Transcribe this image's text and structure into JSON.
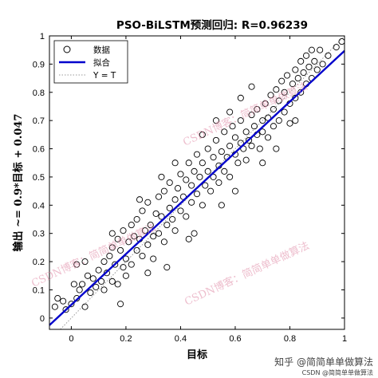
{
  "chart_data": {
    "type": "scatter",
    "title": "PSO-BiLSTM预测回归: R=0.96239",
    "xlabel": "目标",
    "ylabel": "输出 ~= 0.9*目标 + 0.047",
    "xlim": [
      -0.08,
      1.0
    ],
    "ylim": [
      -0.04,
      1.0
    ],
    "xticks": [
      "0",
      "0.2",
      "0.4",
      "0.6",
      "0.8",
      "1"
    ],
    "yticks": [
      "0",
      "0.1",
      "0.2",
      "0.3",
      "0.4",
      "0.5",
      "0.6",
      "0.7",
      "0.8",
      "0.9",
      "1"
    ],
    "grid": false,
    "legend": {
      "position": "top-left",
      "entries": [
        "数据",
        "拟合",
        "Y = T"
      ]
    },
    "fit": {
      "slope": 0.9,
      "intercept": 0.047,
      "color": "#0000cc"
    },
    "identity_color": "#999999",
    "marker_color": "#000000",
    "points": [
      [
        -0.06,
        0.04
      ],
      [
        -0.05,
        0.07
      ],
      [
        -0.03,
        0.06
      ],
      [
        -0.02,
        0.03
      ],
      [
        0.0,
        0.05
      ],
      [
        0.01,
        0.12
      ],
      [
        0.02,
        0.07
      ],
      [
        0.03,
        0.1
      ],
      [
        0.04,
        0.12
      ],
      [
        0.05,
        0.04
      ],
      [
        0.06,
        0.15
      ],
      [
        0.07,
        0.09
      ],
      [
        0.08,
        0.14
      ],
      [
        0.09,
        0.11
      ],
      [
        0.1,
        0.17
      ],
      [
        0.11,
        0.13
      ],
      [
        0.12,
        0.1
      ],
      [
        0.12,
        0.2
      ],
      [
        0.13,
        0.16
      ],
      [
        0.14,
        0.22
      ],
      [
        0.15,
        0.13
      ],
      [
        0.15,
        0.25
      ],
      [
        0.16,
        0.19
      ],
      [
        0.17,
        0.28
      ],
      [
        0.17,
        0.12
      ],
      [
        0.18,
        0.24
      ],
      [
        0.19,
        0.31
      ],
      [
        0.19,
        0.18
      ],
      [
        0.2,
        0.21
      ],
      [
        0.2,
        0.15
      ],
      [
        0.21,
        0.27
      ],
      [
        0.22,
        0.33
      ],
      [
        0.22,
        0.19
      ],
      [
        0.23,
        0.29
      ],
      [
        0.24,
        0.24
      ],
      [
        0.24,
        0.35
      ],
      [
        0.25,
        0.28
      ],
      [
        0.26,
        0.22
      ],
      [
        0.26,
        0.38
      ],
      [
        0.27,
        0.31
      ],
      [
        0.28,
        0.26
      ],
      [
        0.28,
        0.41
      ],
      [
        0.29,
        0.33
      ],
      [
        0.3,
        0.29
      ],
      [
        0.3,
        0.21
      ],
      [
        0.31,
        0.37
      ],
      [
        0.32,
        0.43
      ],
      [
        0.32,
        0.3
      ],
      [
        0.33,
        0.36
      ],
      [
        0.34,
        0.27
      ],
      [
        0.34,
        0.45
      ],
      [
        0.35,
        0.33
      ],
      [
        0.36,
        0.39
      ],
      [
        0.36,
        0.48
      ],
      [
        0.37,
        0.35
      ],
      [
        0.38,
        0.42
      ],
      [
        0.38,
        0.31
      ],
      [
        0.39,
        0.46
      ],
      [
        0.4,
        0.38
      ],
      [
        0.4,
        0.51
      ],
      [
        0.41,
        0.43
      ],
      [
        0.42,
        0.36
      ],
      [
        0.42,
        0.49
      ],
      [
        0.43,
        0.55
      ],
      [
        0.44,
        0.41
      ],
      [
        0.44,
        0.47
      ],
      [
        0.45,
        0.52
      ],
      [
        0.46,
        0.44
      ],
      [
        0.46,
        0.58
      ],
      [
        0.47,
        0.5
      ],
      [
        0.48,
        0.4
      ],
      [
        0.48,
        0.55
      ],
      [
        0.49,
        0.47
      ],
      [
        0.5,
        0.52
      ],
      [
        0.5,
        0.6
      ],
      [
        0.51,
        0.45
      ],
      [
        0.52,
        0.57
      ],
      [
        0.52,
        0.5
      ],
      [
        0.53,
        0.63
      ],
      [
        0.54,
        0.54
      ],
      [
        0.54,
        0.48
      ],
      [
        0.55,
        0.59
      ],
      [
        0.56,
        0.52
      ],
      [
        0.56,
        0.66
      ],
      [
        0.57,
        0.57
      ],
      [
        0.58,
        0.61
      ],
      [
        0.58,
        0.5
      ],
      [
        0.59,
        0.68
      ],
      [
        0.6,
        0.58
      ],
      [
        0.6,
        0.64
      ],
      [
        0.61,
        0.55
      ],
      [
        0.62,
        0.62
      ],
      [
        0.62,
        0.7
      ],
      [
        0.63,
        0.6
      ],
      [
        0.64,
        0.66
      ],
      [
        0.64,
        0.56
      ],
      [
        0.65,
        0.63
      ],
      [
        0.66,
        0.72
      ],
      [
        0.66,
        0.61
      ],
      [
        0.67,
        0.68
      ],
      [
        0.68,
        0.65
      ],
      [
        0.68,
        0.74
      ],
      [
        0.69,
        0.6
      ],
      [
        0.7,
        0.7
      ],
      [
        0.7,
        0.66
      ],
      [
        0.71,
        0.76
      ],
      [
        0.72,
        0.64
      ],
      [
        0.72,
        0.71
      ],
      [
        0.73,
        0.79
      ],
      [
        0.74,
        0.68
      ],
      [
        0.74,
        0.74
      ],
      [
        0.75,
        0.81
      ],
      [
        0.76,
        0.7
      ],
      [
        0.76,
        0.77
      ],
      [
        0.77,
        0.84
      ],
      [
        0.78,
        0.73
      ],
      [
        0.78,
        0.8
      ],
      [
        0.79,
        0.86
      ],
      [
        0.8,
        0.76
      ],
      [
        0.8,
        0.69
      ],
      [
        0.81,
        0.83
      ],
      [
        0.82,
        0.88
      ],
      [
        0.82,
        0.78
      ],
      [
        0.83,
        0.85
      ],
      [
        0.84,
        0.91
      ],
      [
        0.84,
        0.8
      ],
      [
        0.85,
        0.87
      ],
      [
        0.86,
        0.83
      ],
      [
        0.86,
        0.93
      ],
      [
        0.87,
        0.89
      ],
      [
        0.88,
        0.85
      ],
      [
        0.89,
        0.91
      ],
      [
        0.9,
        0.88
      ],
      [
        0.91,
        0.95
      ],
      [
        0.92,
        0.9
      ],
      [
        0.94,
        0.93
      ],
      [
        0.97,
        0.96
      ],
      [
        0.99,
        0.98
      ],
      [
        0.35,
        0.18
      ],
      [
        0.45,
        0.3
      ],
      [
        0.55,
        0.4
      ],
      [
        0.25,
        0.42
      ],
      [
        0.15,
        0.3
      ],
      [
        0.6,
        0.45
      ],
      [
        0.7,
        0.55
      ],
      [
        0.38,
        0.55
      ],
      [
        0.05,
        0.2
      ],
      [
        0.62,
        0.78
      ],
      [
        0.75,
        0.6
      ],
      [
        0.48,
        0.65
      ],
      [
        0.28,
        0.16
      ],
      [
        0.18,
        0.05
      ],
      [
        0.02,
        0.19
      ],
      [
        0.66,
        0.82
      ],
      [
        0.82,
        0.7
      ],
      [
        0.53,
        0.7
      ],
      [
        0.43,
        0.28
      ],
      [
        0.33,
        0.5
      ],
      [
        0.88,
        0.95
      ],
      [
        0.58,
        0.73
      ]
    ]
  },
  "watermarks": [
    "CSDN博客：简简单单做算法",
    "CSDN博客：简简单单做算法",
    "CSDN博客：简简单单做算法"
  ],
  "corner": {
    "line1": "知乎 @简简单单做算法",
    "line2": "CSDN @简简单单做算法"
  }
}
